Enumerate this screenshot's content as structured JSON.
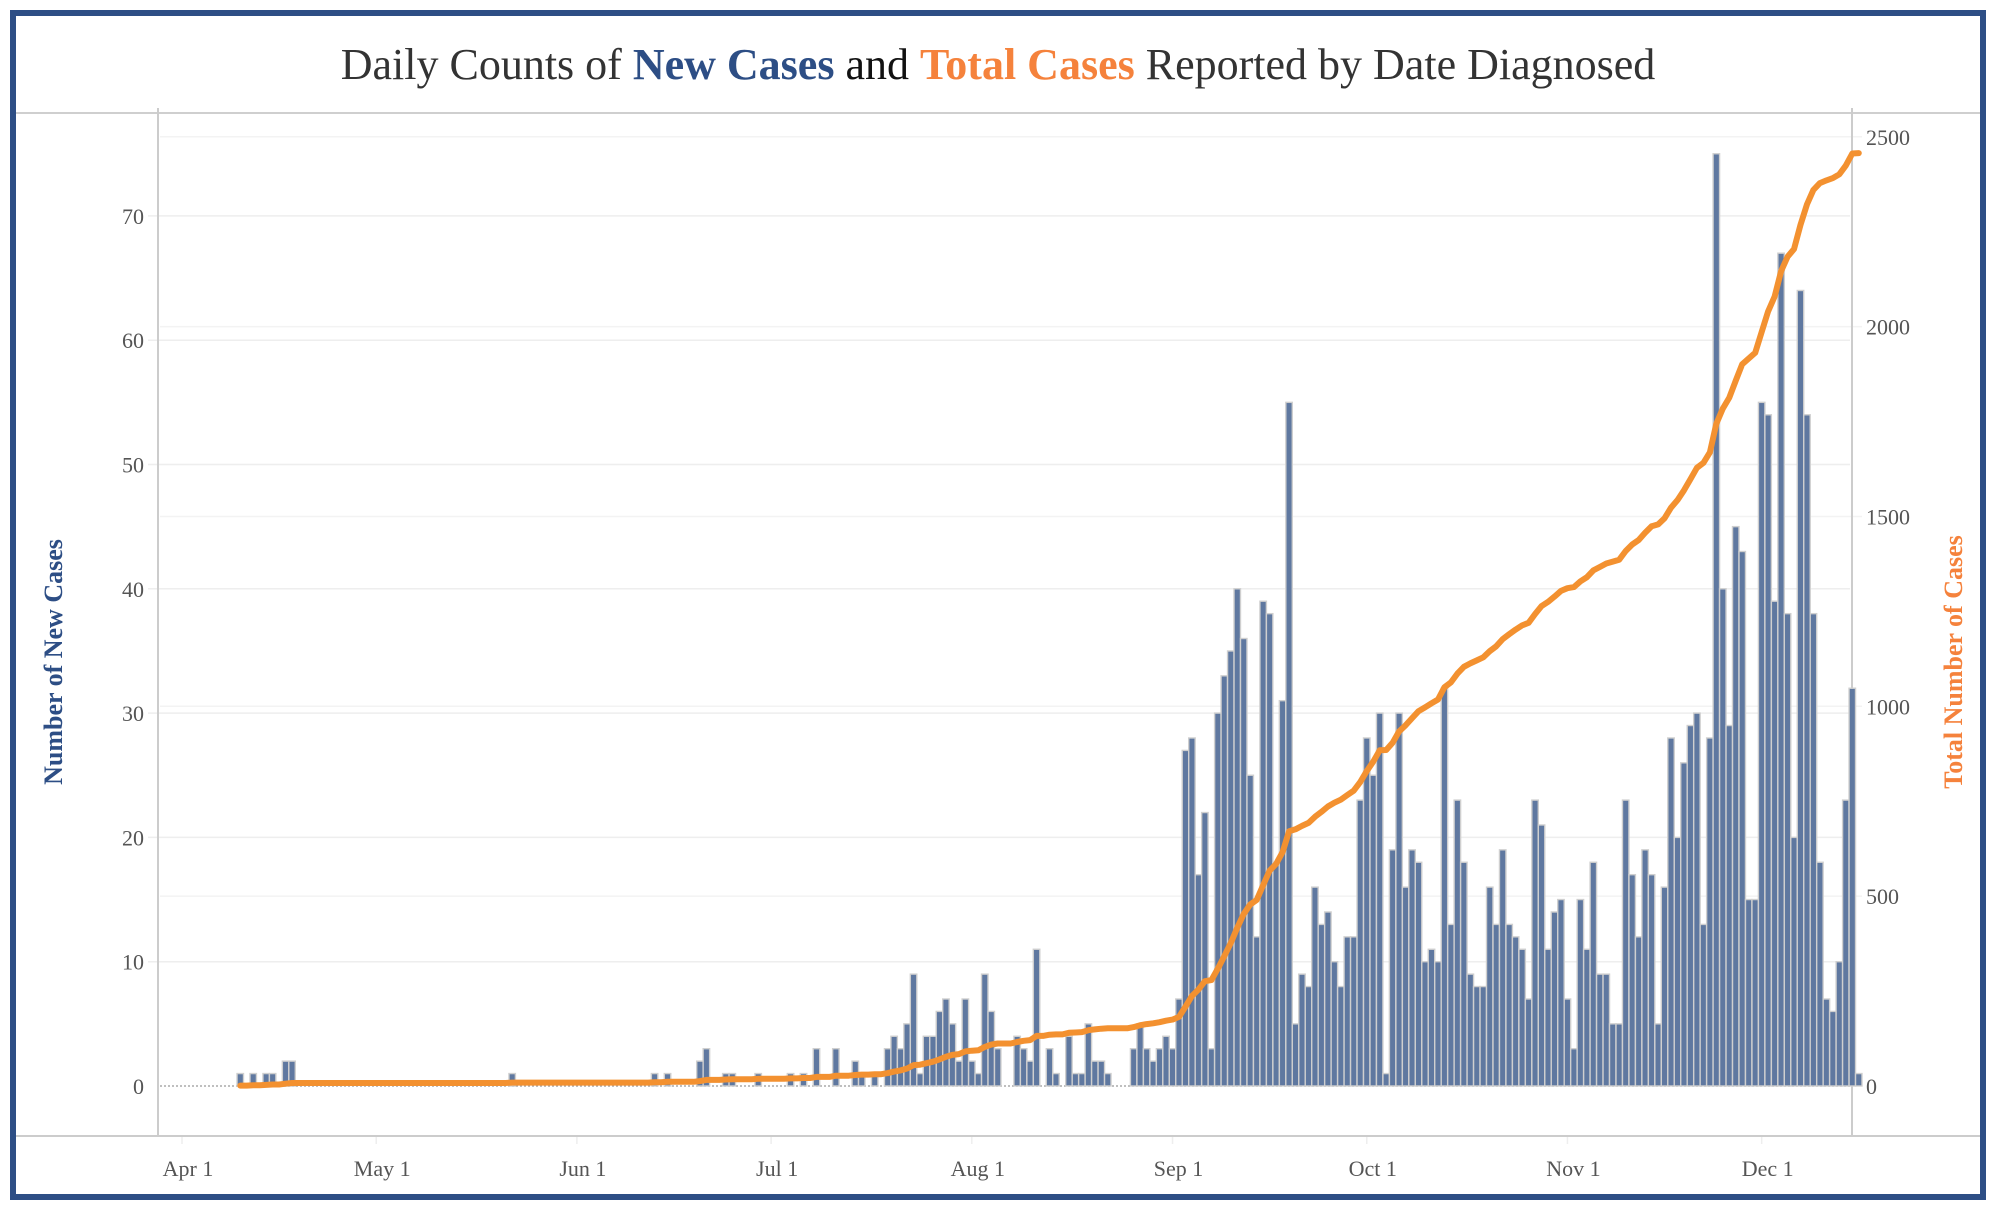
{
  "title": {
    "part1": "Daily Counts of ",
    "part2": "New Cases",
    "part3": " and ",
    "part4": "Total Cases",
    "part5": " Reported by Date Diagnosed"
  },
  "colors": {
    "frame": "#2d4e85",
    "bars": "#5f78a0",
    "bar_outline": "#cfcfcf",
    "line": "#f39130",
    "left_axis_title": "#2d4e85",
    "right_axis_title": "#f5823c"
  },
  "chart_data": {
    "type": "bar+line",
    "title": "Daily Counts of New Cases and Total Cases Reported by Date Diagnosed",
    "xlabel": "",
    "ylabel_left": "Number of New Cases",
    "ylabel_right": "Total Number of Cases",
    "ylim_left": [
      -4,
      78
    ],
    "ylim_right": [
      -100,
      2550
    ],
    "yticks_left": [
      0,
      10,
      20,
      30,
      40,
      50,
      60,
      70
    ],
    "yticks_right": [
      0,
      500,
      1000,
      1500,
      2000,
      2500
    ],
    "xticks": [
      "Apr 1",
      "May 1",
      "Jun 1",
      "Jul 1",
      "Aug 1",
      "Sep 1",
      "Oct 1",
      "Nov 1",
      "Dec 1"
    ],
    "xtick_days": [
      0,
      30,
      61,
      91,
      122,
      153,
      183,
      214,
      244
    ],
    "x_start": "Apr 10",
    "x_start_day": 9,
    "grid": true,
    "legend": "none (encoded in title colors)",
    "series": [
      {
        "name": "New Cases",
        "type": "bar",
        "axis": "left",
        "values": [
          1,
          0,
          1,
          0,
          1,
          1,
          0,
          2,
          2,
          0,
          0,
          0,
          0,
          0,
          0,
          0,
          0,
          0,
          0,
          0,
          0,
          0,
          0,
          0,
          0,
          0,
          0,
          0,
          0,
          0,
          0,
          0,
          0,
          0,
          0,
          0,
          0,
          0,
          0,
          0,
          0,
          0,
          1,
          0,
          0,
          0,
          0,
          0,
          0,
          0,
          0,
          0,
          0,
          0,
          0,
          0,
          0,
          0,
          0,
          0,
          0,
          0,
          0,
          0,
          1,
          0,
          1,
          0,
          0,
          0,
          0,
          2,
          3,
          0,
          0,
          1,
          1,
          0,
          0,
          0,
          1,
          0,
          0,
          0,
          0,
          1,
          0,
          1,
          0,
          3,
          0,
          0,
          3,
          0,
          0,
          2,
          1,
          0,
          1,
          0,
          3,
          4,
          3,
          5,
          9,
          1,
          4,
          4,
          6,
          7,
          5,
          2,
          7,
          2,
          1,
          9,
          6,
          3,
          0,
          0,
          4,
          3,
          2,
          11,
          0,
          3,
          1,
          0,
          4,
          1,
          1,
          5,
          2,
          2,
          1,
          0,
          0,
          0,
          3,
          5,
          3,
          2,
          3,
          4,
          3,
          7,
          27,
          28,
          17,
          22,
          3,
          30,
          33,
          35,
          40,
          36,
          25,
          12,
          39,
          38,
          18,
          31,
          55,
          5,
          9,
          8,
          16,
          13,
          14,
          10,
          8,
          12,
          12,
          23,
          28,
          25,
          30,
          1,
          19,
          30,
          16,
          19,
          18,
          10,
          11,
          10,
          32,
          13,
          23,
          18,
          9,
          8,
          8,
          16,
          13,
          19,
          13,
          12,
          11,
          7,
          23,
          21,
          11,
          14,
          15,
          7,
          3,
          15,
          11,
          18,
          9,
          9,
          5,
          5,
          23,
          17,
          12,
          19,
          17,
          5,
          16,
          28,
          20,
          26,
          29,
          30,
          13,
          28,
          75,
          40,
          29,
          45,
          43,
          15,
          15,
          55,
          54,
          39,
          67,
          38,
          20,
          64,
          54,
          38,
          18,
          7,
          6,
          10,
          23,
          32,
          1
        ]
      },
      {
        "name": "Total Cases",
        "type": "line",
        "axis": "right",
        "values": "cumulative sum of New Cases"
      }
    ]
  }
}
